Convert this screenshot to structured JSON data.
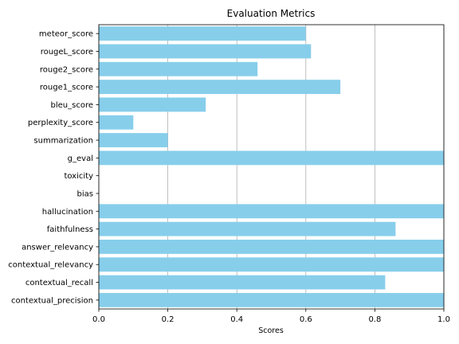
{
  "chart_data": {
    "type": "bar",
    "orientation": "horizontal",
    "title": "Evaluation Metrics",
    "xlabel": "Scores",
    "ylabel": "",
    "xlim": [
      0,
      1
    ],
    "x_ticks": [
      "0.0",
      "0.2",
      "0.4",
      "0.6",
      "0.8",
      "1.0"
    ],
    "x_tick_values": [
      0,
      0.2,
      0.4,
      0.6,
      0.8,
      1.0
    ],
    "grid": "vertical lines on x ticks",
    "bar_color": "#87CEEB",
    "categories": [
      "contextual_precision",
      "contextual_recall",
      "contextual_relevancy",
      "answer_relevancy",
      "faithfulness",
      "hallucination",
      "bias",
      "toxicity",
      "g_eval",
      "summarization",
      "perplexity_score",
      "bleu_score",
      "rouge1_score",
      "rouge2_score",
      "rougeL_score",
      "meteor_score"
    ],
    "values": [
      1.0,
      0.83,
      1.0,
      1.0,
      0.86,
      1.0,
      0.0,
      0.0,
      1.0,
      0.2,
      0.1,
      0.31,
      0.7,
      0.46,
      0.615,
      0.6
    ]
  }
}
